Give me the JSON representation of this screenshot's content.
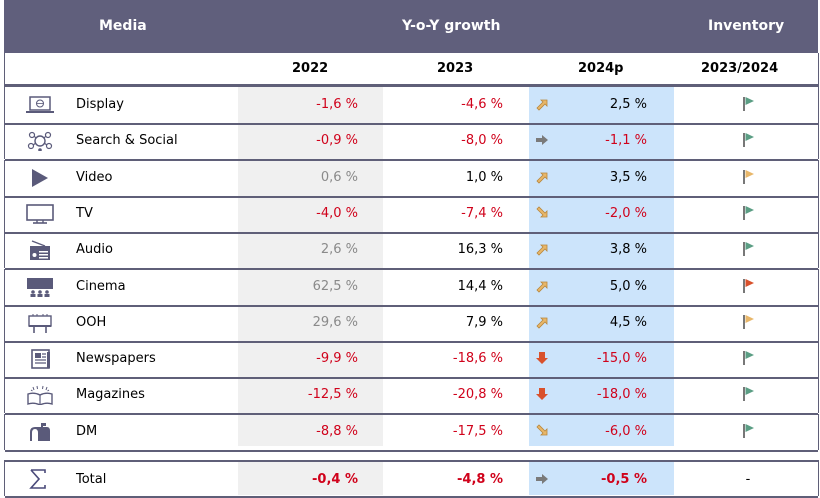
{
  "header": {
    "media": "Media",
    "yoy": "Y-o-Y growth",
    "inventory": "Inventory"
  },
  "subheader": {
    "y2022": "2022",
    "y2023": "2023",
    "y2024": "2024p",
    "inv": "2023/2024"
  },
  "colors": {
    "header_bg": "#605f7c",
    "negative": "#d0021b",
    "col2022_bg": "#f0f0f0",
    "col2024_bg": "#cce4fb",
    "flag_green": "#5b9e84",
    "flag_yellow": "#e8b76a",
    "flag_red": "#d9512c"
  },
  "rows": [
    {
      "icon": "laptop-globe-icon",
      "label": "Display",
      "v2022": "-1,6 %",
      "v2023": "-4,6 %",
      "v2024": "2,5 %",
      "trend": "up-right",
      "flag": "green"
    },
    {
      "icon": "social-network-icon",
      "label": "Search & Social",
      "v2022": "-0,9 %",
      "v2023": "-8,0 %",
      "v2024": "-1,1 %",
      "trend": "flat",
      "flag": "green"
    },
    {
      "icon": "play-icon",
      "label": "Video",
      "v2022": "0,6 %",
      "v2023": "1,0 %",
      "v2024": "3,5 %",
      "trend": "up-right",
      "flag": "yellow"
    },
    {
      "icon": "tv-icon",
      "label": "TV",
      "v2022": "-4,0 %",
      "v2023": "-7,4 %",
      "v2024": "-2,0 %",
      "trend": "down-right",
      "flag": "green"
    },
    {
      "icon": "radio-icon",
      "label": "Audio",
      "v2022": "2,6 %",
      "v2023": "16,3 %",
      "v2024": "3,8 %",
      "trend": "up-right",
      "flag": "green"
    },
    {
      "icon": "cinema-icon",
      "label": "Cinema",
      "v2022": "62,5 %",
      "v2023": "14,4 %",
      "v2024": "5,0 %",
      "trend": "up-right",
      "flag": "red"
    },
    {
      "icon": "billboard-icon",
      "label": "OOH",
      "v2022": "29,6 %",
      "v2023": "7,9 %",
      "v2024": "4,5 %",
      "trend": "up-right",
      "flag": "yellow"
    },
    {
      "icon": "newspaper-icon",
      "label": "Newspapers",
      "v2022": "-9,9 %",
      "v2023": "-18,6 %",
      "v2024": "-15,0 %",
      "trend": "down",
      "flag": "green"
    },
    {
      "icon": "open-book-icon",
      "label": "Magazines",
      "v2022": "-12,5 %",
      "v2023": "-20,8 %",
      "v2024": "-18,0 %",
      "trend": "down",
      "flag": "green"
    },
    {
      "icon": "mailbox-icon",
      "label": "DM",
      "v2022": "-8,8 %",
      "v2023": "-17,5 %",
      "v2024": "-6,0 %",
      "trend": "down-right",
      "flag": "green"
    }
  ],
  "total": {
    "icon": "sigma-icon",
    "label": "Total",
    "v2022": "-0,4 %",
    "v2023": "-4,8 %",
    "v2024": "-0,5 %",
    "trend": "flat",
    "inventory": "-"
  }
}
